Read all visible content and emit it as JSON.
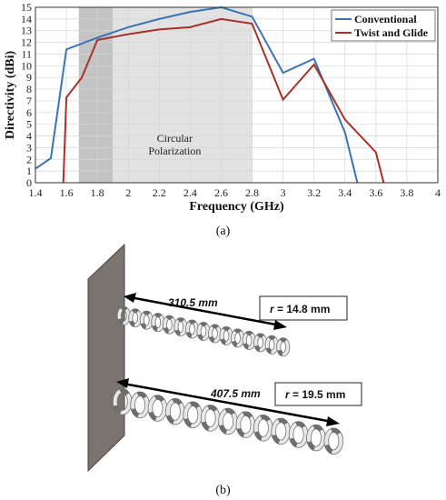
{
  "chart_data": {
    "type": "line",
    "title": "",
    "xlabel": "Frequency (GHz)",
    "ylabel": "Directivity (dBi)",
    "xlim": [
      1.4,
      4
    ],
    "ylim": [
      0,
      15
    ],
    "x_ticks": [
      "1.4",
      "1.6",
      "1.8",
      "2",
      "2.2",
      "2.4",
      "2.6",
      "2.8",
      "3",
      "3.2",
      "3.4",
      "3.6",
      "3.8",
      "4"
    ],
    "y_ticks": [
      "0",
      "1",
      "2",
      "3",
      "4",
      "5",
      "6",
      "7",
      "8",
      "9",
      "10",
      "11",
      "12",
      "13",
      "14",
      "15"
    ],
    "grid": true,
    "legend_position": "top-right",
    "shaded_regions": [
      {
        "from": 1.68,
        "to": 1.9,
        "color": "#c4c4c4"
      },
      {
        "from": 1.9,
        "to": 2.8,
        "color": "#e2e2e2"
      }
    ],
    "annotation": {
      "line1": "Circular",
      "line2": "Polarization",
      "x": 2.3,
      "y": 3.5
    },
    "series": [
      {
        "name": "Conventional",
        "color": "#3a74b8",
        "x": [
          1.4,
          1.5,
          1.6,
          1.8,
          2.0,
          2.2,
          2.4,
          2.6,
          2.8,
          3.0,
          3.2,
          3.4,
          3.48
        ],
        "y": [
          1.2,
          2.1,
          11.4,
          12.4,
          13.3,
          14.0,
          14.6,
          15.0,
          14.2,
          9.4,
          10.6,
          4.3,
          0
        ]
      },
      {
        "name": "Twist and Glide",
        "color": "#a83228",
        "x": [
          1.58,
          1.6,
          1.7,
          1.8,
          2.0,
          2.2,
          2.4,
          2.6,
          2.8,
          3.0,
          3.2,
          3.4,
          3.6,
          3.65
        ],
        "y": [
          0,
          7.3,
          9.0,
          12.2,
          12.7,
          13.1,
          13.3,
          14.0,
          13.6,
          7.1,
          10.1,
          5.4,
          2.6,
          0
        ]
      }
    ]
  },
  "captions": {
    "a": "(a)",
    "b": "(b)"
  },
  "diagram": {
    "top_length": "310.5 mm",
    "top_radius_symbol": "r",
    "top_radius_value": " = 14.8 mm",
    "bottom_length": "407.5 mm",
    "bottom_radius_symbol": "r",
    "bottom_radius_value": " = 19.5 mm"
  }
}
